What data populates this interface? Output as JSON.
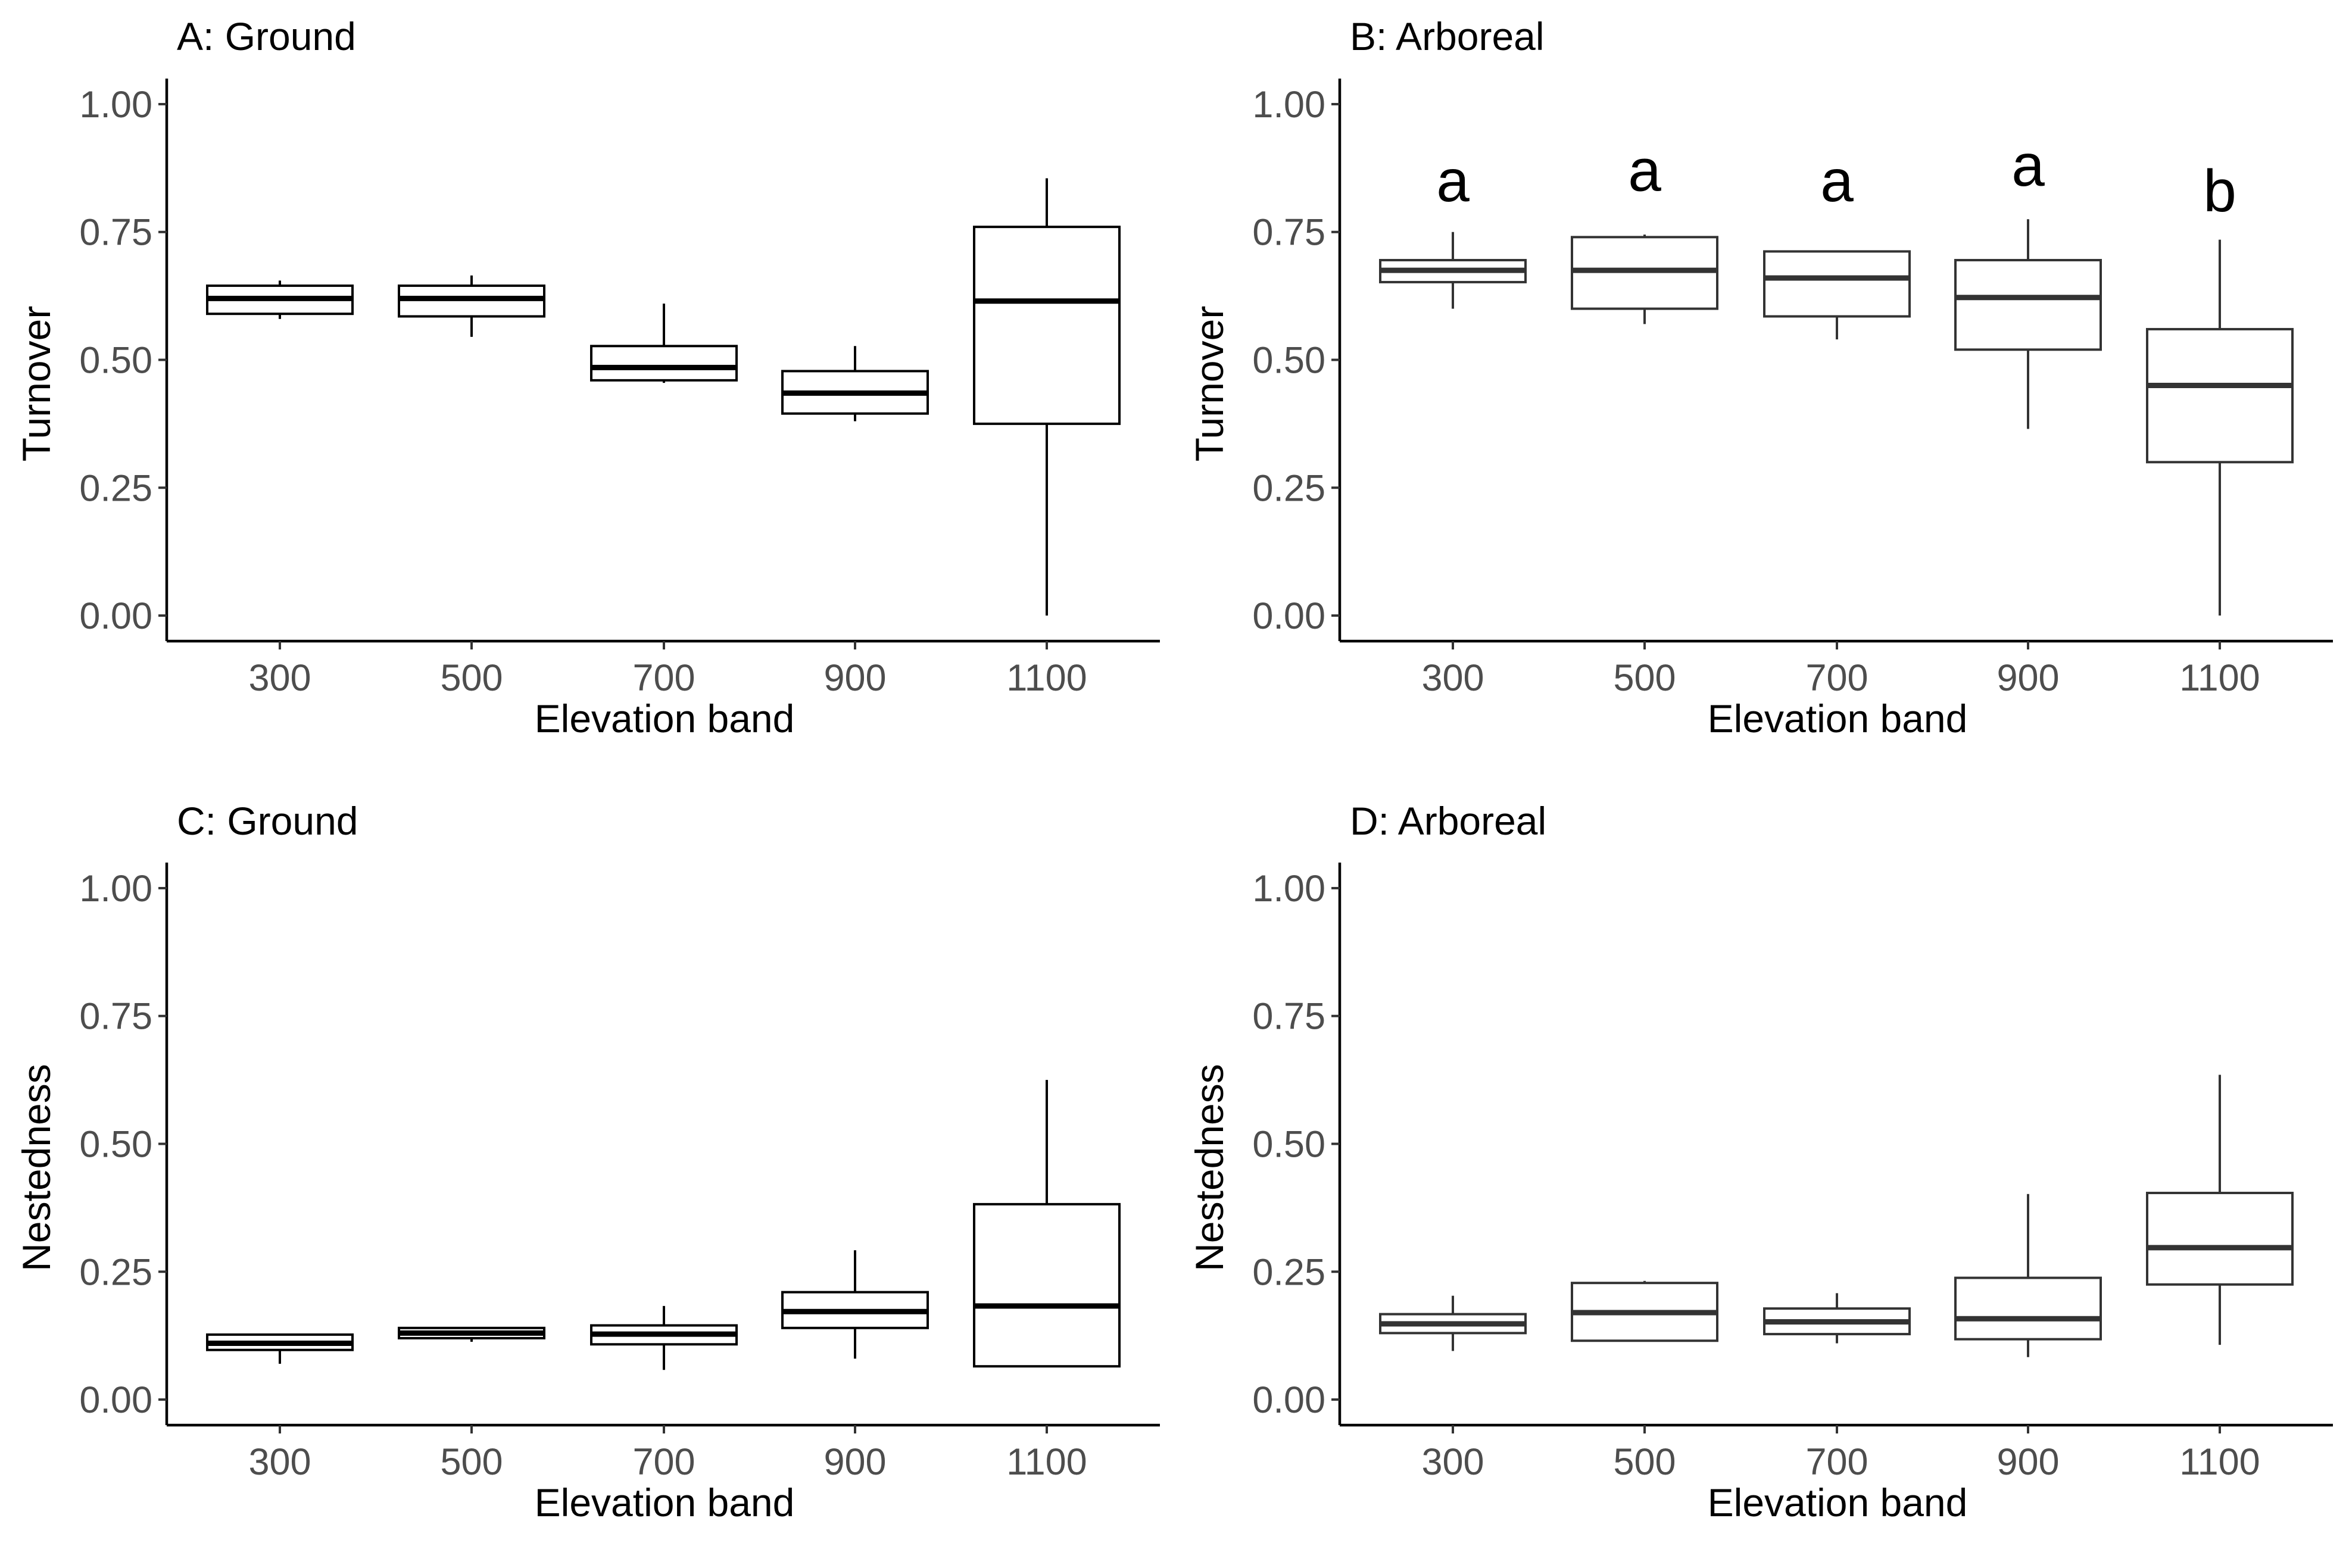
{
  "chart_data": [
    {
      "type": "boxplot",
      "title": "A: Ground",
      "xlabel": "Elevation band",
      "ylabel": "Turnover",
      "categories": [
        "300",
        "500",
        "700",
        "900",
        "1100"
      ],
      "yticks": [
        "0.00",
        "0.25",
        "0.50",
        "0.75",
        "1.00"
      ],
      "ylim": [
        -0.05,
        1.05
      ],
      "color": "#000000",
      "boxes": [
        {
          "min": 0.58,
          "q1": 0.59,
          "median": 0.62,
          "q3": 0.645,
          "max": 0.655
        },
        {
          "min": 0.545,
          "q1": 0.585,
          "median": 0.62,
          "q3": 0.645,
          "max": 0.665
        },
        {
          "min": 0.455,
          "q1": 0.46,
          "median": 0.485,
          "q3": 0.527,
          "max": 0.61
        },
        {
          "min": 0.38,
          "q1": 0.395,
          "median": 0.435,
          "q3": 0.478,
          "max": 0.527
        },
        {
          "min": 0.0,
          "q1": 0.375,
          "median": 0.615,
          "q3": 0.76,
          "max": 0.855
        }
      ],
      "letters": []
    },
    {
      "type": "boxplot",
      "title": "B: Arboreal",
      "xlabel": "Elevation band",
      "ylabel": "Turnover",
      "categories": [
        "300",
        "500",
        "700",
        "900",
        "1100"
      ],
      "yticks": [
        "0.00",
        "0.25",
        "0.50",
        "0.75",
        "1.00"
      ],
      "ylim": [
        -0.05,
        1.05
      ],
      "color": "#333333",
      "boxes": [
        {
          "min": 0.6,
          "q1": 0.652,
          "median": 0.675,
          "q3": 0.695,
          "max": 0.75
        },
        {
          "min": 0.57,
          "q1": 0.6,
          "median": 0.675,
          "q3": 0.74,
          "max": 0.745
        },
        {
          "min": 0.54,
          "q1": 0.585,
          "median": 0.66,
          "q3": 0.712,
          "max": 0.712
        },
        {
          "min": 0.365,
          "q1": 0.52,
          "median": 0.622,
          "q3": 0.695,
          "max": 0.775
        },
        {
          "min": 0.0,
          "q1": 0.3,
          "median": 0.45,
          "q3": 0.56,
          "max": 0.735
        }
      ],
      "letters": [
        {
          "text": "a",
          "y": 0.85
        },
        {
          "text": "a",
          "y": 0.87
        },
        {
          "text": "a",
          "y": 0.85
        },
        {
          "text": "a",
          "y": 0.88
        },
        {
          "text": "b",
          "y": 0.83
        }
      ]
    },
    {
      "type": "boxplot",
      "title": "C: Ground",
      "xlabel": "Elevation band",
      "ylabel": "Nestedness",
      "categories": [
        "300",
        "500",
        "700",
        "900",
        "1100"
      ],
      "yticks": [
        "0.00",
        "0.25",
        "0.50",
        "0.75",
        "1.00"
      ],
      "ylim": [
        -0.05,
        1.05
      ],
      "color": "#000000",
      "boxes": [
        {
          "min": 0.07,
          "q1": 0.097,
          "median": 0.11,
          "q3": 0.127,
          "max": 0.127
        },
        {
          "min": 0.113,
          "q1": 0.12,
          "median": 0.13,
          "q3": 0.14,
          "max": 0.14
        },
        {
          "min": 0.058,
          "q1": 0.108,
          "median": 0.128,
          "q3": 0.145,
          "max": 0.183
        },
        {
          "min": 0.08,
          "q1": 0.14,
          "median": 0.172,
          "q3": 0.21,
          "max": 0.292
        },
        {
          "min": 0.065,
          "q1": 0.065,
          "median": 0.183,
          "q3": 0.382,
          "max": 0.625
        }
      ],
      "letters": []
    },
    {
      "type": "boxplot",
      "title": "D: Arboreal",
      "xlabel": "Elevation band",
      "ylabel": "Nestedness",
      "categories": [
        "300",
        "500",
        "700",
        "900",
        "1100"
      ],
      "yticks": [
        "0.00",
        "0.25",
        "0.50",
        "0.75",
        "1.00"
      ],
      "ylim": [
        -0.05,
        1.05
      ],
      "color": "#333333",
      "boxes": [
        {
          "min": 0.095,
          "q1": 0.13,
          "median": 0.148,
          "q3": 0.167,
          "max": 0.203
        },
        {
          "min": 0.115,
          "q1": 0.115,
          "median": 0.17,
          "q3": 0.228,
          "max": 0.232
        },
        {
          "min": 0.11,
          "q1": 0.128,
          "median": 0.152,
          "q3": 0.178,
          "max": 0.208
        },
        {
          "min": 0.083,
          "q1": 0.118,
          "median": 0.158,
          "q3": 0.238,
          "max": 0.402
        },
        {
          "min": 0.107,
          "q1": 0.225,
          "median": 0.297,
          "q3": 0.404,
          "max": 0.635
        }
      ],
      "letters": []
    }
  ]
}
